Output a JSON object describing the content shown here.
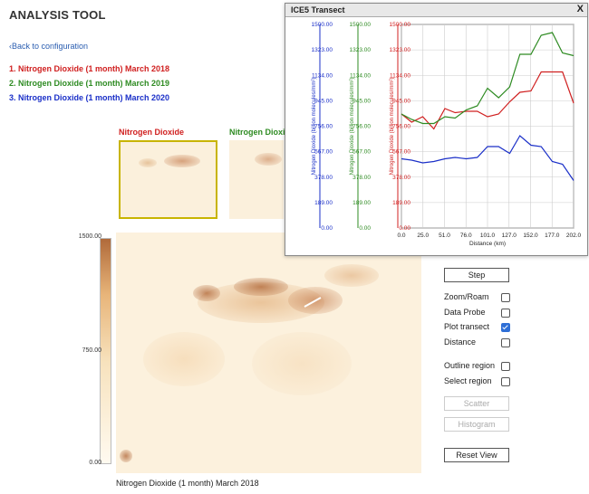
{
  "page": {
    "title": "ANALYSIS TOOL",
    "back_link": "Back to configuration"
  },
  "datasets": [
    {
      "label": "1. Nitrogen Dioxide (1 month) March 2018",
      "color": "#d02020"
    },
    {
      "label": "2. Nitrogen Dioxide (1 month) March 2019",
      "color": "#2e8b22"
    },
    {
      "label": "3. Nitrogen Dioxide (1 month) March 2020",
      "color": "#1a2fc8"
    }
  ],
  "thumbnails": [
    {
      "label": "Nitrogen Dioxide",
      "color": "#d02020",
      "selected": true
    },
    {
      "label": "Nitrogen Dioxi",
      "color": "#2e8b22",
      "selected": false
    }
  ],
  "colorbar": {
    "max": "1500.00",
    "mid": "750.00",
    "min": "0.00"
  },
  "map": {
    "caption": "Nitrogen Dioxide (1 month) March 2018"
  },
  "controls": {
    "step": "Step",
    "options": [
      {
        "label": "Zoom/Roam",
        "checked": false
      },
      {
        "label": "Data Probe",
        "checked": false
      },
      {
        "label": "Plot transect",
        "checked": true
      },
      {
        "label": "Distance",
        "checked": false
      },
      {
        "label": "Outline region",
        "checked": false
      },
      {
        "label": "Select region",
        "checked": false
      }
    ],
    "scatter": "Scatter",
    "histogram": "Histogram",
    "reset": "Reset View"
  },
  "transect": {
    "title": "ICE5 Transect",
    "close": "X"
  },
  "chart_data": {
    "type": "line",
    "xlabel": "Distance (km)",
    "x_ticks": [
      "0.0",
      "25.0",
      "51.0",
      "76.0",
      "101.0",
      "127.0",
      "152.0",
      "177.0",
      "202.0"
    ],
    "y_ticks": [
      "0.00",
      "189.00",
      "378.00",
      "567.00",
      "756.00",
      "945.00",
      "1134.00",
      "1323.00",
      "1500.00"
    ],
    "xlim": [
      0,
      202
    ],
    "ylim": [
      0,
      1500
    ],
    "axes": [
      {
        "label": "Nitrogen Dioxide (billion molecules/mm²)",
        "color": "#1a2fc8"
      },
      {
        "label": "Nitrogen Dioxide (billion molecules/mm²)",
        "color": "#2e8b22"
      },
      {
        "label": "Nitrogen Dioxide (billion molecules/mm²)",
        "color": "#d02020"
      }
    ],
    "x": [
      0,
      12,
      25,
      38,
      51,
      63,
      76,
      89,
      101,
      114,
      127,
      139,
      152,
      164,
      177,
      189,
      202
    ],
    "series": [
      {
        "color": "#d02020",
        "values": [
          840,
          780,
          820,
          730,
          880,
          850,
          860,
          860,
          820,
          840,
          930,
          1000,
          1010,
          1150,
          1150,
          1150,
          920
        ]
      },
      {
        "color": "#2e8b22",
        "values": [
          840,
          800,
          770,
          770,
          820,
          810,
          870,
          900,
          1030,
          960,
          1040,
          1280,
          1280,
          1420,
          1440,
          1290,
          1270
        ]
      },
      {
        "color": "#1a2fc8",
        "values": [
          510,
          500,
          480,
          490,
          510,
          520,
          510,
          520,
          600,
          600,
          550,
          680,
          610,
          600,
          490,
          470,
          350
        ]
      }
    ]
  }
}
